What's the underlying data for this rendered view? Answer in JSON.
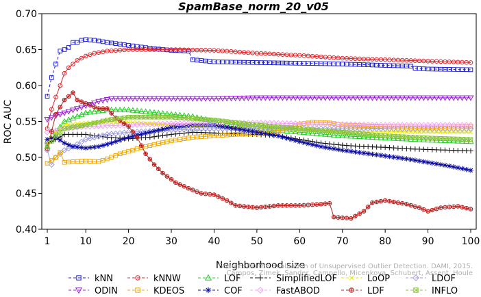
{
  "chart_data": {
    "type": "line",
    "title": "SpamBase_norm_20_v05",
    "xlabel": "Neighborhood size",
    "ylabel": "ROC AUC",
    "xlim": [
      1,
      100
    ],
    "ylim": [
      0.4,
      0.7
    ],
    "x_ticks": [
      "1",
      "10",
      "20",
      "30",
      "40",
      "50",
      "60",
      "70",
      "80",
      "90",
      "100"
    ],
    "y_ticks": [
      "0.40",
      "0.45",
      "0.50",
      "0.55",
      "0.60",
      "0.65",
      "0.70"
    ],
    "grid": false,
    "legend_position": "bottom",
    "watermark": [
      "Source: On the Evaluation of Unsupervised Outlier Detection. DAMI, 2015.",
      "Campos, Zimek, Sander, Campello, Micenkova, Schubert, Assent, Houle"
    ],
    "series": [
      {
        "name": "kNN",
        "color": "#1f1fd6",
        "marker": "square",
        "dash": "4,3",
        "points": [
          [
            1,
            0.585
          ],
          [
            2,
            0.611
          ],
          [
            3,
            0.63
          ],
          [
            4,
            0.648
          ],
          [
            5,
            0.65
          ],
          [
            6,
            0.653
          ],
          [
            7,
            0.66
          ],
          [
            8,
            0.66
          ],
          [
            9,
            0.663
          ],
          [
            10,
            0.664
          ],
          [
            12,
            0.663
          ],
          [
            15,
            0.66
          ],
          [
            20,
            0.656
          ],
          [
            25,
            0.652
          ],
          [
            30,
            0.649
          ],
          [
            34,
            0.648
          ],
          [
            35,
            0.636
          ],
          [
            40,
            0.633
          ],
          [
            50,
            0.632
          ],
          [
            60,
            0.631
          ],
          [
            70,
            0.63
          ],
          [
            80,
            0.628
          ],
          [
            86,
            0.627
          ],
          [
            87,
            0.624
          ],
          [
            90,
            0.623
          ],
          [
            100,
            0.622
          ]
        ]
      },
      {
        "name": "kNNW",
        "color": "#e0252a",
        "marker": "circle",
        "dash": "",
        "points": [
          [
            1,
            0.54
          ],
          [
            2,
            0.567
          ],
          [
            3,
            0.584
          ],
          [
            4,
            0.6
          ],
          [
            5,
            0.617
          ],
          [
            6,
            0.625
          ],
          [
            7,
            0.63
          ],
          [
            8,
            0.635
          ],
          [
            10,
            0.641
          ],
          [
            12,
            0.645
          ],
          [
            15,
            0.648
          ],
          [
            20,
            0.65
          ],
          [
            30,
            0.65
          ],
          [
            40,
            0.649
          ],
          [
            50,
            0.645
          ],
          [
            60,
            0.642
          ],
          [
            70,
            0.638
          ],
          [
            80,
            0.636
          ],
          [
            90,
            0.634
          ],
          [
            100,
            0.632
          ]
        ]
      },
      {
        "name": "LOF",
        "color": "#1fcf1f",
        "marker": "triangle",
        "dash": "",
        "points": [
          [
            1,
            0.515
          ],
          [
            3,
            0.535
          ],
          [
            5,
            0.55
          ],
          [
            8,
            0.557
          ],
          [
            10,
            0.562
          ],
          [
            15,
            0.566
          ],
          [
            20,
            0.566
          ],
          [
            25,
            0.563
          ],
          [
            30,
            0.56
          ],
          [
            35,
            0.557
          ],
          [
            40,
            0.55
          ],
          [
            45,
            0.545
          ],
          [
            50,
            0.54
          ],
          [
            60,
            0.535
          ],
          [
            70,
            0.53
          ],
          [
            80,
            0.527
          ],
          [
            90,
            0.524
          ],
          [
            100,
            0.522
          ]
        ]
      },
      {
        "name": "SimplifiedLOF",
        "color": "#111111",
        "marker": "plus",
        "dash": "",
        "points": [
          [
            1,
            0.52
          ],
          [
            3,
            0.525
          ],
          [
            5,
            0.532
          ],
          [
            10,
            0.532
          ],
          [
            15,
            0.528
          ],
          [
            20,
            0.526
          ],
          [
            25,
            0.528
          ],
          [
            30,
            0.532
          ],
          [
            35,
            0.535
          ],
          [
            40,
            0.534
          ],
          [
            45,
            0.533
          ],
          [
            50,
            0.532
          ],
          [
            55,
            0.53
          ],
          [
            60,
            0.525
          ],
          [
            65,
            0.52
          ],
          [
            70,
            0.517
          ],
          [
            75,
            0.515
          ],
          [
            80,
            0.514
          ],
          [
            85,
            0.512
          ],
          [
            90,
            0.511
          ],
          [
            100,
            0.509
          ]
        ]
      },
      {
        "name": "LoOP",
        "color": "#e6e600",
        "marker": "cross",
        "dash": "",
        "points": [
          [
            1,
            0.52
          ],
          [
            3,
            0.535
          ],
          [
            5,
            0.545
          ],
          [
            10,
            0.548
          ],
          [
            15,
            0.55
          ],
          [
            20,
            0.549
          ],
          [
            30,
            0.545
          ],
          [
            40,
            0.543
          ],
          [
            50,
            0.54
          ],
          [
            60,
            0.538
          ],
          [
            70,
            0.537
          ],
          [
            80,
            0.536
          ],
          [
            90,
            0.535
          ],
          [
            100,
            0.535
          ]
        ]
      },
      {
        "name": "LDOF",
        "color": "#9a9ae0",
        "marker": "diamond",
        "dash": "",
        "points": [
          [
            1,
            0.51
          ],
          [
            2,
            0.49
          ],
          [
            3,
            0.5
          ],
          [
            5,
            0.51
          ],
          [
            7,
            0.515
          ],
          [
            10,
            0.525
          ],
          [
            15,
            0.532
          ],
          [
            20,
            0.535
          ],
          [
            30,
            0.538
          ],
          [
            40,
            0.54
          ],
          [
            50,
            0.54
          ],
          [
            60,
            0.54
          ],
          [
            70,
            0.54
          ],
          [
            80,
            0.54
          ],
          [
            90,
            0.54
          ],
          [
            100,
            0.54
          ]
        ]
      },
      {
        "name": "ODIN",
        "color": "#9a1fd6",
        "marker": "triangle-down",
        "dash": "",
        "points": [
          [
            1,
            0.553
          ],
          [
            3,
            0.558
          ],
          [
            5,
            0.562
          ],
          [
            8,
            0.568
          ],
          [
            10,
            0.572
          ],
          [
            13,
            0.578
          ],
          [
            16,
            0.582
          ],
          [
            20,
            0.582
          ],
          [
            30,
            0.582
          ],
          [
            40,
            0.582
          ],
          [
            50,
            0.583
          ],
          [
            60,
            0.583
          ],
          [
            70,
            0.583
          ],
          [
            80,
            0.583
          ],
          [
            90,
            0.583
          ],
          [
            100,
            0.583
          ]
        ]
      },
      {
        "name": "KDEOS",
        "color": "#f0a800",
        "marker": "square",
        "dash": "",
        "points": [
          [
            1,
            0.492
          ],
          [
            3,
            0.5
          ],
          [
            4,
            0.507
          ],
          [
            5,
            0.493
          ],
          [
            7,
            0.494
          ],
          [
            10,
            0.495
          ],
          [
            13,
            0.494
          ],
          [
            15,
            0.498
          ],
          [
            18,
            0.505
          ],
          [
            22,
            0.512
          ],
          [
            26,
            0.518
          ],
          [
            30,
            0.523
          ],
          [
            35,
            0.528
          ],
          [
            40,
            0.53
          ],
          [
            45,
            0.532
          ],
          [
            50,
            0.533
          ],
          [
            55,
            0.535
          ],
          [
            60,
            0.546
          ],
          [
            63,
            0.549
          ],
          [
            67,
            0.548
          ],
          [
            70,
            0.545
          ],
          [
            80,
            0.543
          ],
          [
            90,
            0.542
          ],
          [
            100,
            0.543
          ]
        ]
      },
      {
        "name": "COF",
        "color": "#0a0aa0",
        "marker": "asterisk",
        "dash": "",
        "points": [
          [
            1,
            0.525
          ],
          [
            3,
            0.528
          ],
          [
            5,
            0.52
          ],
          [
            7,
            0.515
          ],
          [
            10,
            0.513
          ],
          [
            13,
            0.515
          ],
          [
            16,
            0.52
          ],
          [
            20,
            0.528
          ],
          [
            25,
            0.535
          ],
          [
            30,
            0.542
          ],
          [
            35,
            0.545
          ],
          [
            40,
            0.545
          ],
          [
            45,
            0.54
          ],
          [
            50,
            0.535
          ],
          [
            55,
            0.53
          ],
          [
            60,
            0.522
          ],
          [
            65,
            0.515
          ],
          [
            70,
            0.51
          ],
          [
            75,
            0.506
          ],
          [
            80,
            0.502
          ],
          [
            85,
            0.498
          ],
          [
            90,
            0.493
          ],
          [
            95,
            0.488
          ],
          [
            100,
            0.482
          ]
        ]
      },
      {
        "name": "FastABOD",
        "color": "#f0a0f0",
        "marker": "diamond",
        "dash": "",
        "points": [
          [
            1,
            0.535
          ],
          [
            5,
            0.54
          ],
          [
            10,
            0.543
          ],
          [
            20,
            0.545
          ],
          [
            30,
            0.547
          ],
          [
            40,
            0.548
          ],
          [
            50,
            0.548
          ],
          [
            60,
            0.547
          ],
          [
            70,
            0.546
          ],
          [
            80,
            0.545
          ],
          [
            90,
            0.545
          ],
          [
            100,
            0.545
          ]
        ]
      },
      {
        "name": "LDF",
        "color": "#b82020",
        "marker": "circle-plus",
        "dash": "",
        "points": [
          [
            1,
            0.512
          ],
          [
            3,
            0.56
          ],
          [
            5,
            0.58
          ],
          [
            7,
            0.59
          ],
          [
            8,
            0.58
          ],
          [
            10,
            0.575
          ],
          [
            13,
            0.568
          ],
          [
            15,
            0.568
          ],
          [
            17,
            0.555
          ],
          [
            20,
            0.543
          ],
          [
            22,
            0.528
          ],
          [
            24,
            0.505
          ],
          [
            26,
            0.49
          ],
          [
            28,
            0.478
          ],
          [
            31,
            0.465
          ],
          [
            34,
            0.457
          ],
          [
            37,
            0.45
          ],
          [
            40,
            0.448
          ],
          [
            43,
            0.44
          ],
          [
            45,
            0.433
          ],
          [
            50,
            0.43
          ],
          [
            55,
            0.433
          ],
          [
            60,
            0.433
          ],
          [
            65,
            0.435
          ],
          [
            67,
            0.436
          ],
          [
            68,
            0.417
          ],
          [
            72,
            0.415
          ],
          [
            75,
            0.425
          ],
          [
            77,
            0.437
          ],
          [
            80,
            0.44
          ],
          [
            85,
            0.435
          ],
          [
            88,
            0.43
          ],
          [
            90,
            0.425
          ],
          [
            93,
            0.43
          ],
          [
            97,
            0.432
          ],
          [
            100,
            0.428
          ]
        ]
      },
      {
        "name": "INFLO",
        "color": "#8ac43a",
        "marker": "square-x",
        "dash": "",
        "points": [
          [
            1,
            0.515
          ],
          [
            3,
            0.53
          ],
          [
            5,
            0.54
          ],
          [
            10,
            0.545
          ],
          [
            15,
            0.552
          ],
          [
            20,
            0.556
          ],
          [
            30,
            0.556
          ],
          [
            40,
            0.552
          ],
          [
            50,
            0.545
          ],
          [
            60,
            0.54
          ],
          [
            70,
            0.535
          ],
          [
            80,
            0.53
          ],
          [
            90,
            0.527
          ],
          [
            100,
            0.525
          ]
        ]
      }
    ],
    "legend_order": [
      "kNN",
      "kNNW",
      "LOF",
      "SimplifiedLOF",
      "LoOP",
      "LDOF",
      "ODIN",
      "KDEOS",
      "COF",
      "FastABOD",
      "LDF",
      "INFLO"
    ]
  }
}
